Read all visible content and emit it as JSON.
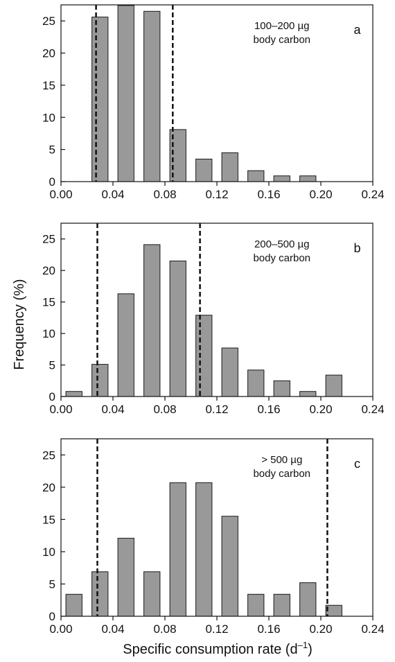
{
  "figure": {
    "ylabel": "Frequency (%)",
    "xlabel_main": "Specific consumption rate (d",
    "xlabel_sup": "–1",
    "xlabel_end": ")"
  },
  "colors": {
    "bar_fill": "#999999",
    "bar_stroke": "#1a1a1a",
    "axis": "#111111"
  },
  "chart_data": [
    {
      "type": "bar",
      "panel": "a",
      "annotation": [
        "100–200 µg",
        "body carbon"
      ],
      "x_bin_start": [
        0.0,
        0.02,
        0.04,
        0.06,
        0.08,
        0.1,
        0.12,
        0.14,
        0.16,
        0.18,
        0.2,
        0.22
      ],
      "values": [
        0,
        25.6,
        27.4,
        26.5,
        8.1,
        3.5,
        4.5,
        1.7,
        0.9,
        0.9,
        0,
        0
      ],
      "dashed_lines_x": [
        0.027,
        0.086
      ],
      "xlim": [
        0,
        0.24
      ],
      "ylim": [
        0,
        27.5
      ],
      "xticks": [
        "0.00",
        "0.04",
        "0.08",
        "0.12",
        "0.16",
        "0.20",
        "0.24"
      ],
      "yticks": [
        "0",
        "5",
        "10",
        "15",
        "20",
        "25"
      ]
    },
    {
      "type": "bar",
      "panel": "b",
      "annotation": [
        "200–500 µg",
        "body carbon"
      ],
      "x_bin_start": [
        0.0,
        0.02,
        0.04,
        0.06,
        0.08,
        0.1,
        0.12,
        0.14,
        0.16,
        0.18,
        0.2,
        0.22
      ],
      "values": [
        0.8,
        5.1,
        16.3,
        24.1,
        21.5,
        12.9,
        7.7,
        4.2,
        2.5,
        0.8,
        3.4,
        0
      ],
      "dashed_lines_x": [
        0.028,
        0.107
      ],
      "xlim": [
        0,
        0.24
      ],
      "ylim": [
        0,
        27.5
      ],
      "xticks": [
        "0.00",
        "0.04",
        "0.08",
        "0.12",
        "0.16",
        "0.20",
        "0.24"
      ],
      "yticks": [
        "0",
        "5",
        "10",
        "15",
        "20",
        "25"
      ]
    },
    {
      "type": "bar",
      "panel": "c",
      "annotation": [
        "> 500 µg",
        "body carbon"
      ],
      "x_bin_start": [
        0.0,
        0.02,
        0.04,
        0.06,
        0.08,
        0.1,
        0.12,
        0.14,
        0.16,
        0.18,
        0.2,
        0.22
      ],
      "values": [
        3.4,
        6.9,
        12.1,
        6.9,
        20.7,
        20.7,
        15.5,
        3.4,
        3.4,
        5.2,
        1.7,
        0
      ],
      "dashed_lines_x": [
        0.028,
        0.205
      ],
      "xlim": [
        0,
        0.24
      ],
      "ylim": [
        0,
        27.5
      ],
      "xticks": [
        "0.00",
        "0.04",
        "0.08",
        "0.12",
        "0.16",
        "0.20",
        "0.24"
      ],
      "yticks": [
        "0",
        "5",
        "10",
        "15",
        "20",
        "25"
      ]
    }
  ]
}
